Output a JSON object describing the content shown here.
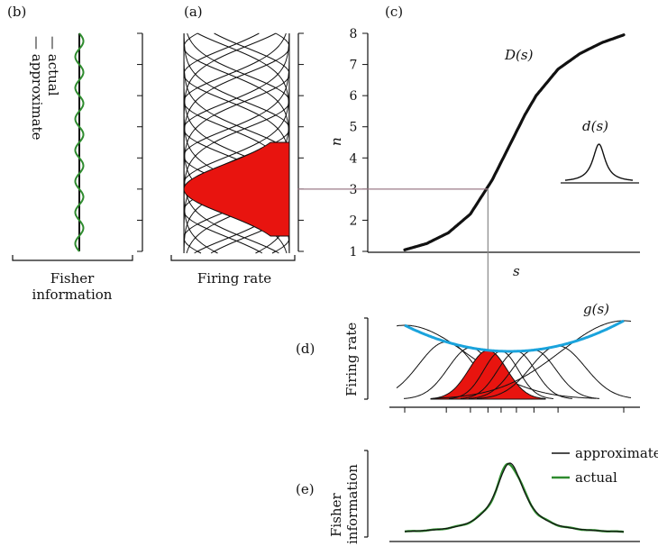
{
  "colors": {
    "black": "#111111",
    "red": "#e8140f",
    "green": "#2e8b2e",
    "blue": "#1aa3dc",
    "gray": "#888888",
    "guide": "#9b7b88"
  },
  "panels": {
    "b": {
      "tag": "(b)",
      "legend_approx": "— approximate",
      "legend_actual": "— actual",
      "xlabel_line1": "Fisher",
      "xlabel_line2": "information"
    },
    "a": {
      "tag": "(a)",
      "xlabel": "Firing rate"
    },
    "c": {
      "tag": "(c)",
      "ylabel": "n",
      "xlabel": "s",
      "curve_label": "D(s)",
      "inset_label": "d(s)"
    },
    "d": {
      "tag": "(d)",
      "ylabel": "Firing rate",
      "envelope_label": "g(s)"
    },
    "e": {
      "tag": "(e)",
      "ylabel_line1": "Fisher",
      "ylabel_line2": "information",
      "legend_approx": "approximate",
      "legend_actual": "actual"
    }
  },
  "chart_data": [
    {
      "panel": "c",
      "type": "line",
      "xlabel": "s",
      "ylabel": "n",
      "ylim": [
        1,
        8
      ],
      "yticks": [
        1,
        2,
        3,
        4,
        5,
        6,
        7,
        8
      ],
      "series": [
        {
          "name": "D(s)",
          "x": [
            0,
            0.1,
            0.2,
            0.3,
            0.4,
            0.45,
            0.5,
            0.55,
            0.6,
            0.7,
            0.8,
            0.9,
            1.0
          ],
          "y": [
            1.05,
            1.25,
            1.6,
            2.2,
            3.3,
            4.0,
            4.7,
            5.4,
            6.0,
            6.85,
            7.35,
            7.7,
            7.95
          ]
        }
      ],
      "inset": {
        "name": "d(s)",
        "shape": "peak"
      },
      "highlight": {
        "n": 3,
        "s": 0.38
      }
    },
    {
      "panel": "a",
      "type": "line",
      "xlabel": "Firing rate",
      "neurons": 8,
      "highlighted_neuron": 3
    },
    {
      "panel": "b",
      "type": "line",
      "xlabel": "Fisher information",
      "series": [
        {
          "name": "approximate",
          "shape": "constant"
        },
        {
          "name": "actual",
          "shape": "oscillating"
        }
      ]
    },
    {
      "panel": "d",
      "type": "line",
      "ylabel": "Firing rate",
      "tuning_centers": [
        0.0,
        0.19,
        0.3,
        0.38,
        0.44,
        0.51,
        0.59,
        0.7,
        1.0
      ],
      "highlighted_center": 0.38,
      "envelope": {
        "name": "g(s)",
        "min_x": 0.48
      }
    },
    {
      "panel": "e",
      "type": "line",
      "ylabel": "Fisher information",
      "series": [
        {
          "name": "approximate"
        },
        {
          "name": "actual"
        }
      ],
      "peak_x": 0.48
    }
  ]
}
